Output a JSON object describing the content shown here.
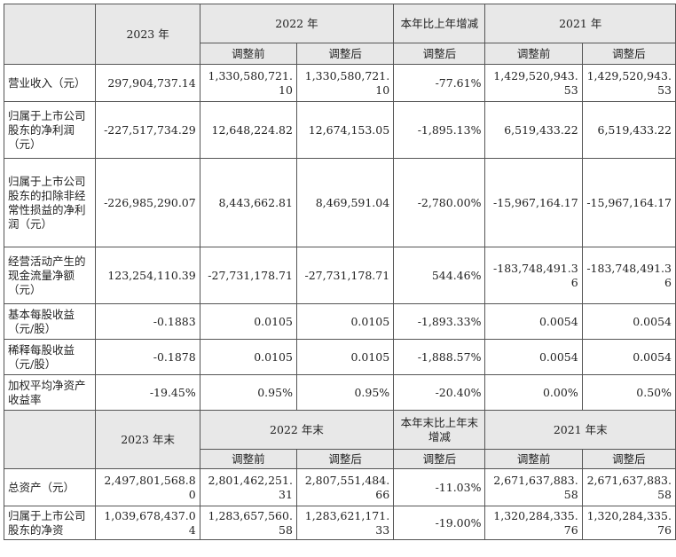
{
  "header1": {
    "y2023": "2023 年",
    "y2022": "2022 年",
    "change": "本年比上年增减",
    "y2021": "2021 年",
    "before": "调整前",
    "after": "调整后"
  },
  "rows1": [
    {
      "label": "营业收入（元）",
      "v": [
        "297,904,737.14",
        "1,330,580,721.10",
        "1,330,580,721.10",
        "-77.61%",
        "1,429,520,943.53",
        "1,429,520,943.53"
      ]
    },
    {
      "label": "归属于上市公司股东的净利润（元）",
      "v": [
        "-227,517,734.29",
        "12,648,224.82",
        "12,674,153.05",
        "-1,895.13%",
        "6,519,433.22",
        "6,519,433.22"
      ]
    },
    {
      "label": "归属于上市公司股东的扣除非经常性损益的净利润（元）",
      "v": [
        "-226,985,290.07",
        "8,443,662.81",
        "8,469,591.04",
        "-2,780.00%",
        "-15,967,164.17",
        "-15,967,164.17"
      ]
    },
    {
      "label": "经营活动产生的现金流量净额（元）",
      "v": [
        "123,254,110.39",
        "-27,731,178.71",
        "-27,731,178.71",
        "544.46%",
        "-183,748,491.36",
        "-183,748,491.36"
      ]
    },
    {
      "label": "基本每股收益（元/股）",
      "v": [
        "-0.1883",
        "0.0105",
        "0.0105",
        "-1,893.33%",
        "0.0054",
        "0.0054"
      ]
    },
    {
      "label": "稀释每股收益（元/股）",
      "v": [
        "-0.1878",
        "0.0105",
        "0.0105",
        "-1,888.57%",
        "0.0054",
        "0.0054"
      ]
    },
    {
      "label": "加权平均净资产收益率",
      "v": [
        "-19.45%",
        "0.95%",
        "0.95%",
        "-20.40%",
        "0.00%",
        "0.50%"
      ]
    }
  ],
  "header2": {
    "y2023": "2023 年末",
    "y2022": "2022 年末",
    "change": "本年末比上年末增减",
    "y2021": "2021 年末",
    "before": "调整前",
    "after": "调整后"
  },
  "rows2": [
    {
      "label": "总资产（元）",
      "v": [
        "2,497,801,568.80",
        "2,801,462,251.31",
        "2,807,551,484.66",
        "-11.03%",
        "2,671,637,883.58",
        "2,671,637,883.58"
      ]
    },
    {
      "label": "归属于上市公司股东的净资",
      "v": [
        "1,039,678,437.04",
        "1,283,657,560.58",
        "1,283,621,171.33",
        "-19.00%",
        "1,320,284,335.76",
        "1,320,284,335.76"
      ]
    }
  ]
}
